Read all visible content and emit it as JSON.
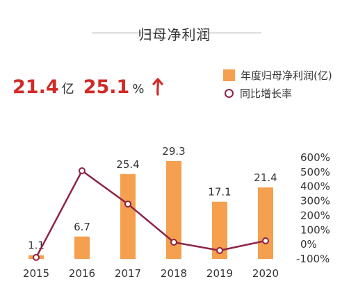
{
  "title": "归母净利润",
  "kpi": {
    "profit_value": "21.4",
    "profit_unit": "亿",
    "growth_value": "25.1",
    "growth_unit": "%"
  },
  "colors": {
    "bar": "#f4a04e",
    "line": "#8e2347",
    "kpi": "#d22a27"
  },
  "chart_data": {
    "type": "bar",
    "categories": [
      "2015",
      "2016",
      "2017",
      "2018",
      "2019",
      "2020"
    ],
    "series": [
      {
        "name": "年度归母净利润(亿)",
        "type": "bar",
        "axis": "left",
        "values": [
          1.1,
          6.7,
          25.4,
          29.3,
          17.1,
          21.4
        ],
        "labels": [
          "1.1",
          "6.7",
          "25.4",
          "29.3",
          "17.1",
          "21.4"
        ]
      },
      {
        "name": "同比增长率",
        "type": "line",
        "axis": "right",
        "values": [
          -90,
          509,
          279,
          15,
          -42,
          25.1
        ]
      }
    ],
    "y2_ticks": [
      "600%",
      "500%",
      "400%",
      "300%",
      "200%",
      "100%",
      "0%",
      "-100%"
    ],
    "y2lim": [
      -100,
      600
    ],
    "grid": false,
    "legend": "top-right"
  }
}
